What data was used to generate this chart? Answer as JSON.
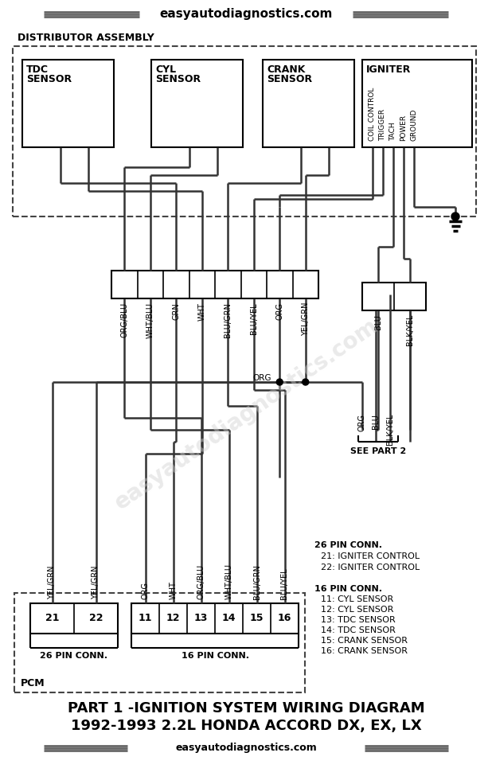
{
  "bg_color": "#ffffff",
  "title_website": "easyautodiagnostics.com",
  "title_main1": "PART 1 -IGNITION SYSTEM WIRING DIAGRAM",
  "title_main2": "1992-1993 2.2L HONDA ACCORD DX, EX, LX",
  "distributor_label": "DISTRIBUTOR ASSEMBLY",
  "tdc_label": [
    "TDC",
    "SENSOR"
  ],
  "cyl_label": [
    "CYL",
    "SENSOR"
  ],
  "crank_label": [
    "CRANK",
    "SENSOR"
  ],
  "igniter_label": "IGNITER",
  "igniter_pins": [
    "COIL CONTROL",
    "TRIGGER",
    "TACH",
    "POWER",
    "GROUND"
  ],
  "conn8_wire_labels": [
    "ORG/BLU",
    "WHT/BLU",
    "GRN",
    "WHT",
    "BLU/GRN",
    "BLU/YEL",
    "ORG",
    "YEL/GRN"
  ],
  "conn2_wire_labels": [
    "BLU",
    "BLK/YEL"
  ],
  "bottom_wire_labels_26": [
    "YEL/GRN",
    "YEL/GRN"
  ],
  "bottom_wire_labels_16": [
    "ORG",
    "WHT",
    "ORG/BLU",
    "WHT/BLU",
    "BLU/GRN",
    "BLU/YEL"
  ],
  "right_mid_labels": [
    "ORG",
    "BLU",
    "BLK/YEL"
  ],
  "right_lower_labels": [
    "ORG",
    "BLU",
    "BLK/YEL"
  ],
  "pcm_26pin_labels": [
    "21",
    "22"
  ],
  "pcm_16pin_labels": [
    "11",
    "12",
    "13",
    "14",
    "15",
    "16"
  ],
  "pcm_label": "PCM",
  "conn_26_label": "26 PIN CONN.",
  "conn_16_label": "16 PIN CONN.",
  "see_part2": "SEE PART 2",
  "ann_26pin_title": "26 PIN CONN.",
  "ann_26pin_lines": [
    "21: IGNITER CONTROL",
    "22: IGNITER CONTROL"
  ],
  "ann_16pin_title": "16 PIN CONN.",
  "ann_16pin_lines": [
    "11: CYL SENSOR",
    "12: CYL SENSOR",
    "13: TDC SENSOR",
    "14: TDC SENSOR",
    "15: CRANK SENSOR",
    "16: CRANK SENSOR"
  ],
  "watermark": "easyautodiagnostics.com"
}
